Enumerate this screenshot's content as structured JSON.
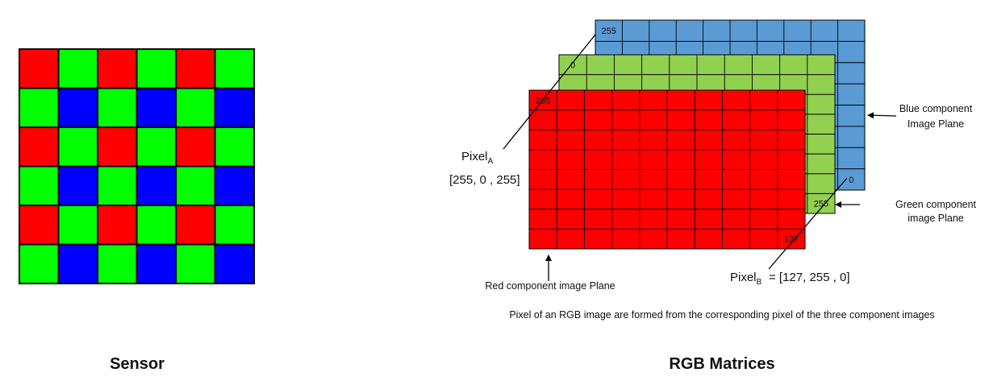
{
  "sensor": {
    "caption": "Sensor",
    "rows": 6,
    "cols": 6,
    "pattern": [
      [
        "red",
        "green",
        "red",
        "green",
        "red",
        "green"
      ],
      [
        "green",
        "blue",
        "green",
        "blue",
        "green",
        "blue"
      ],
      [
        "red",
        "green",
        "red",
        "green",
        "red",
        "green"
      ],
      [
        "green",
        "blue",
        "green",
        "blue",
        "green",
        "blue"
      ],
      [
        "red",
        "green",
        "red",
        "green",
        "red",
        "green"
      ],
      [
        "green",
        "blue",
        "green",
        "blue",
        "green",
        "blue"
      ]
    ],
    "colors": {
      "red": "#ff0000",
      "green": "#00ff00",
      "blue": "#0000ff"
    }
  },
  "rgb": {
    "caption": "RGB Matrices",
    "planes": [
      {
        "id": "blue",
        "color": "#5b9bd5",
        "label": "Blue component\nImage  Plane",
        "rows": 8,
        "cols": 10,
        "values": [
          {
            "r": 0,
            "c": 0,
            "text": "255"
          },
          {
            "r": 7,
            "c": 9,
            "text": "0"
          }
        ]
      },
      {
        "id": "green",
        "color": "#92d050",
        "label": "Green component\nimage Plane",
        "rows": 8,
        "cols": 10,
        "values": [
          {
            "r": 0,
            "c": 0,
            "text": "0"
          },
          {
            "r": 7,
            "c": 9,
            "text": "255"
          }
        ]
      },
      {
        "id": "red",
        "color": "#ff0000",
        "label": "Red component image Plane",
        "rows": 8,
        "cols": 10,
        "values": [
          {
            "r": 0,
            "c": 0,
            "text": "255"
          },
          {
            "r": 7,
            "c": 9,
            "text": "127"
          }
        ]
      }
    ],
    "pixel_a": {
      "name": "Pixel",
      "sub": "A",
      "value": "[255, 0 , 255]"
    },
    "pixel_b": {
      "name": "Pixel",
      "sub": "B",
      "value": "= [127, 255 , 0]"
    },
    "footnote": "Pixel of an RGB image are formed from the corresponding pixel of the three component images"
  }
}
